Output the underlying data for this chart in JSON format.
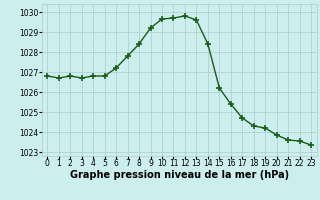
{
  "hours": [
    0,
    1,
    2,
    3,
    4,
    5,
    6,
    7,
    8,
    9,
    10,
    11,
    12,
    13,
    14,
    15,
    16,
    17,
    18,
    19,
    20,
    21,
    22,
    23
  ],
  "pressure": [
    1026.8,
    1026.7,
    1026.8,
    1026.7,
    1026.8,
    1026.8,
    1027.2,
    1027.8,
    1028.4,
    1029.2,
    1029.65,
    1029.7,
    1029.8,
    1029.6,
    1028.4,
    1026.2,
    1025.4,
    1024.7,
    1024.3,
    1024.2,
    1023.85,
    1023.6,
    1023.55,
    1023.35
  ],
  "line_color": "#1a5c1a",
  "marker": "+",
  "marker_size": 4,
  "marker_lw": 1.2,
  "bg_color": "#cceeed",
  "grid_color": "#aacccc",
  "xlabel": "Graphe pression niveau de la mer (hPa)",
  "xlabel_fontsize": 7,
  "ylim": [
    1022.8,
    1030.4
  ],
  "yticks": [
    1023,
    1024,
    1025,
    1026,
    1027,
    1028,
    1029,
    1030
  ],
  "xticks": [
    0,
    1,
    2,
    3,
    4,
    5,
    6,
    7,
    8,
    9,
    10,
    11,
    12,
    13,
    14,
    15,
    16,
    17,
    18,
    19,
    20,
    21,
    22,
    23
  ],
  "tick_fontsize": 5.5,
  "line_width": 1.0
}
